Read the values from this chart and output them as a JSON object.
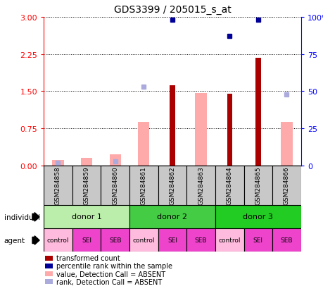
{
  "title": "GDS3399 / 205015_s_at",
  "samples": [
    "GSM284858",
    "GSM284859",
    "GSM284860",
    "GSM284861",
    "GSM284862",
    "GSM284863",
    "GSM284864",
    "GSM284865",
    "GSM284866"
  ],
  "transformed_count": [
    null,
    null,
    null,
    null,
    1.62,
    null,
    1.45,
    2.18,
    null
  ],
  "percentile_rank_pct": [
    null,
    null,
    null,
    null,
    98.0,
    null,
    87.0,
    98.0,
    null
  ],
  "value_absent": [
    0.12,
    0.15,
    0.22,
    0.88,
    null,
    1.47,
    null,
    null,
    0.88
  ],
  "rank_absent_pct": [
    1.7,
    null,
    2.7,
    53.0,
    null,
    null,
    null,
    null,
    48.0
  ],
  "donors": [
    {
      "label": "donor 1",
      "start": 0,
      "end": 3,
      "color": "#BBEEAA"
    },
    {
      "label": "donor 2",
      "start": 3,
      "end": 6,
      "color": "#44CC44"
    },
    {
      "label": "donor 3",
      "start": 6,
      "end": 9,
      "color": "#22CC22"
    }
  ],
  "agents": [
    "control",
    "SEI",
    "SEB",
    "control",
    "SEI",
    "SEB",
    "control",
    "SEI",
    "SEB"
  ],
  "agent_color_map": {
    "control": "#FFBBDD",
    "SEI": "#EE44CC",
    "SEB": "#EE44CC"
  },
  "ylim_left": [
    0,
    3
  ],
  "ylim_right": [
    0,
    100
  ],
  "yticks_left": [
    0,
    0.75,
    1.5,
    2.25,
    3
  ],
  "yticks_right": [
    0,
    25,
    50,
    75,
    100
  ],
  "color_bar_red": "#AA0000",
  "color_bar_pink": "#FFAAAA",
  "color_dot_blue": "#000099",
  "color_dot_lightblue": "#AAAADD",
  "bg_sample": "#C8C8C8"
}
